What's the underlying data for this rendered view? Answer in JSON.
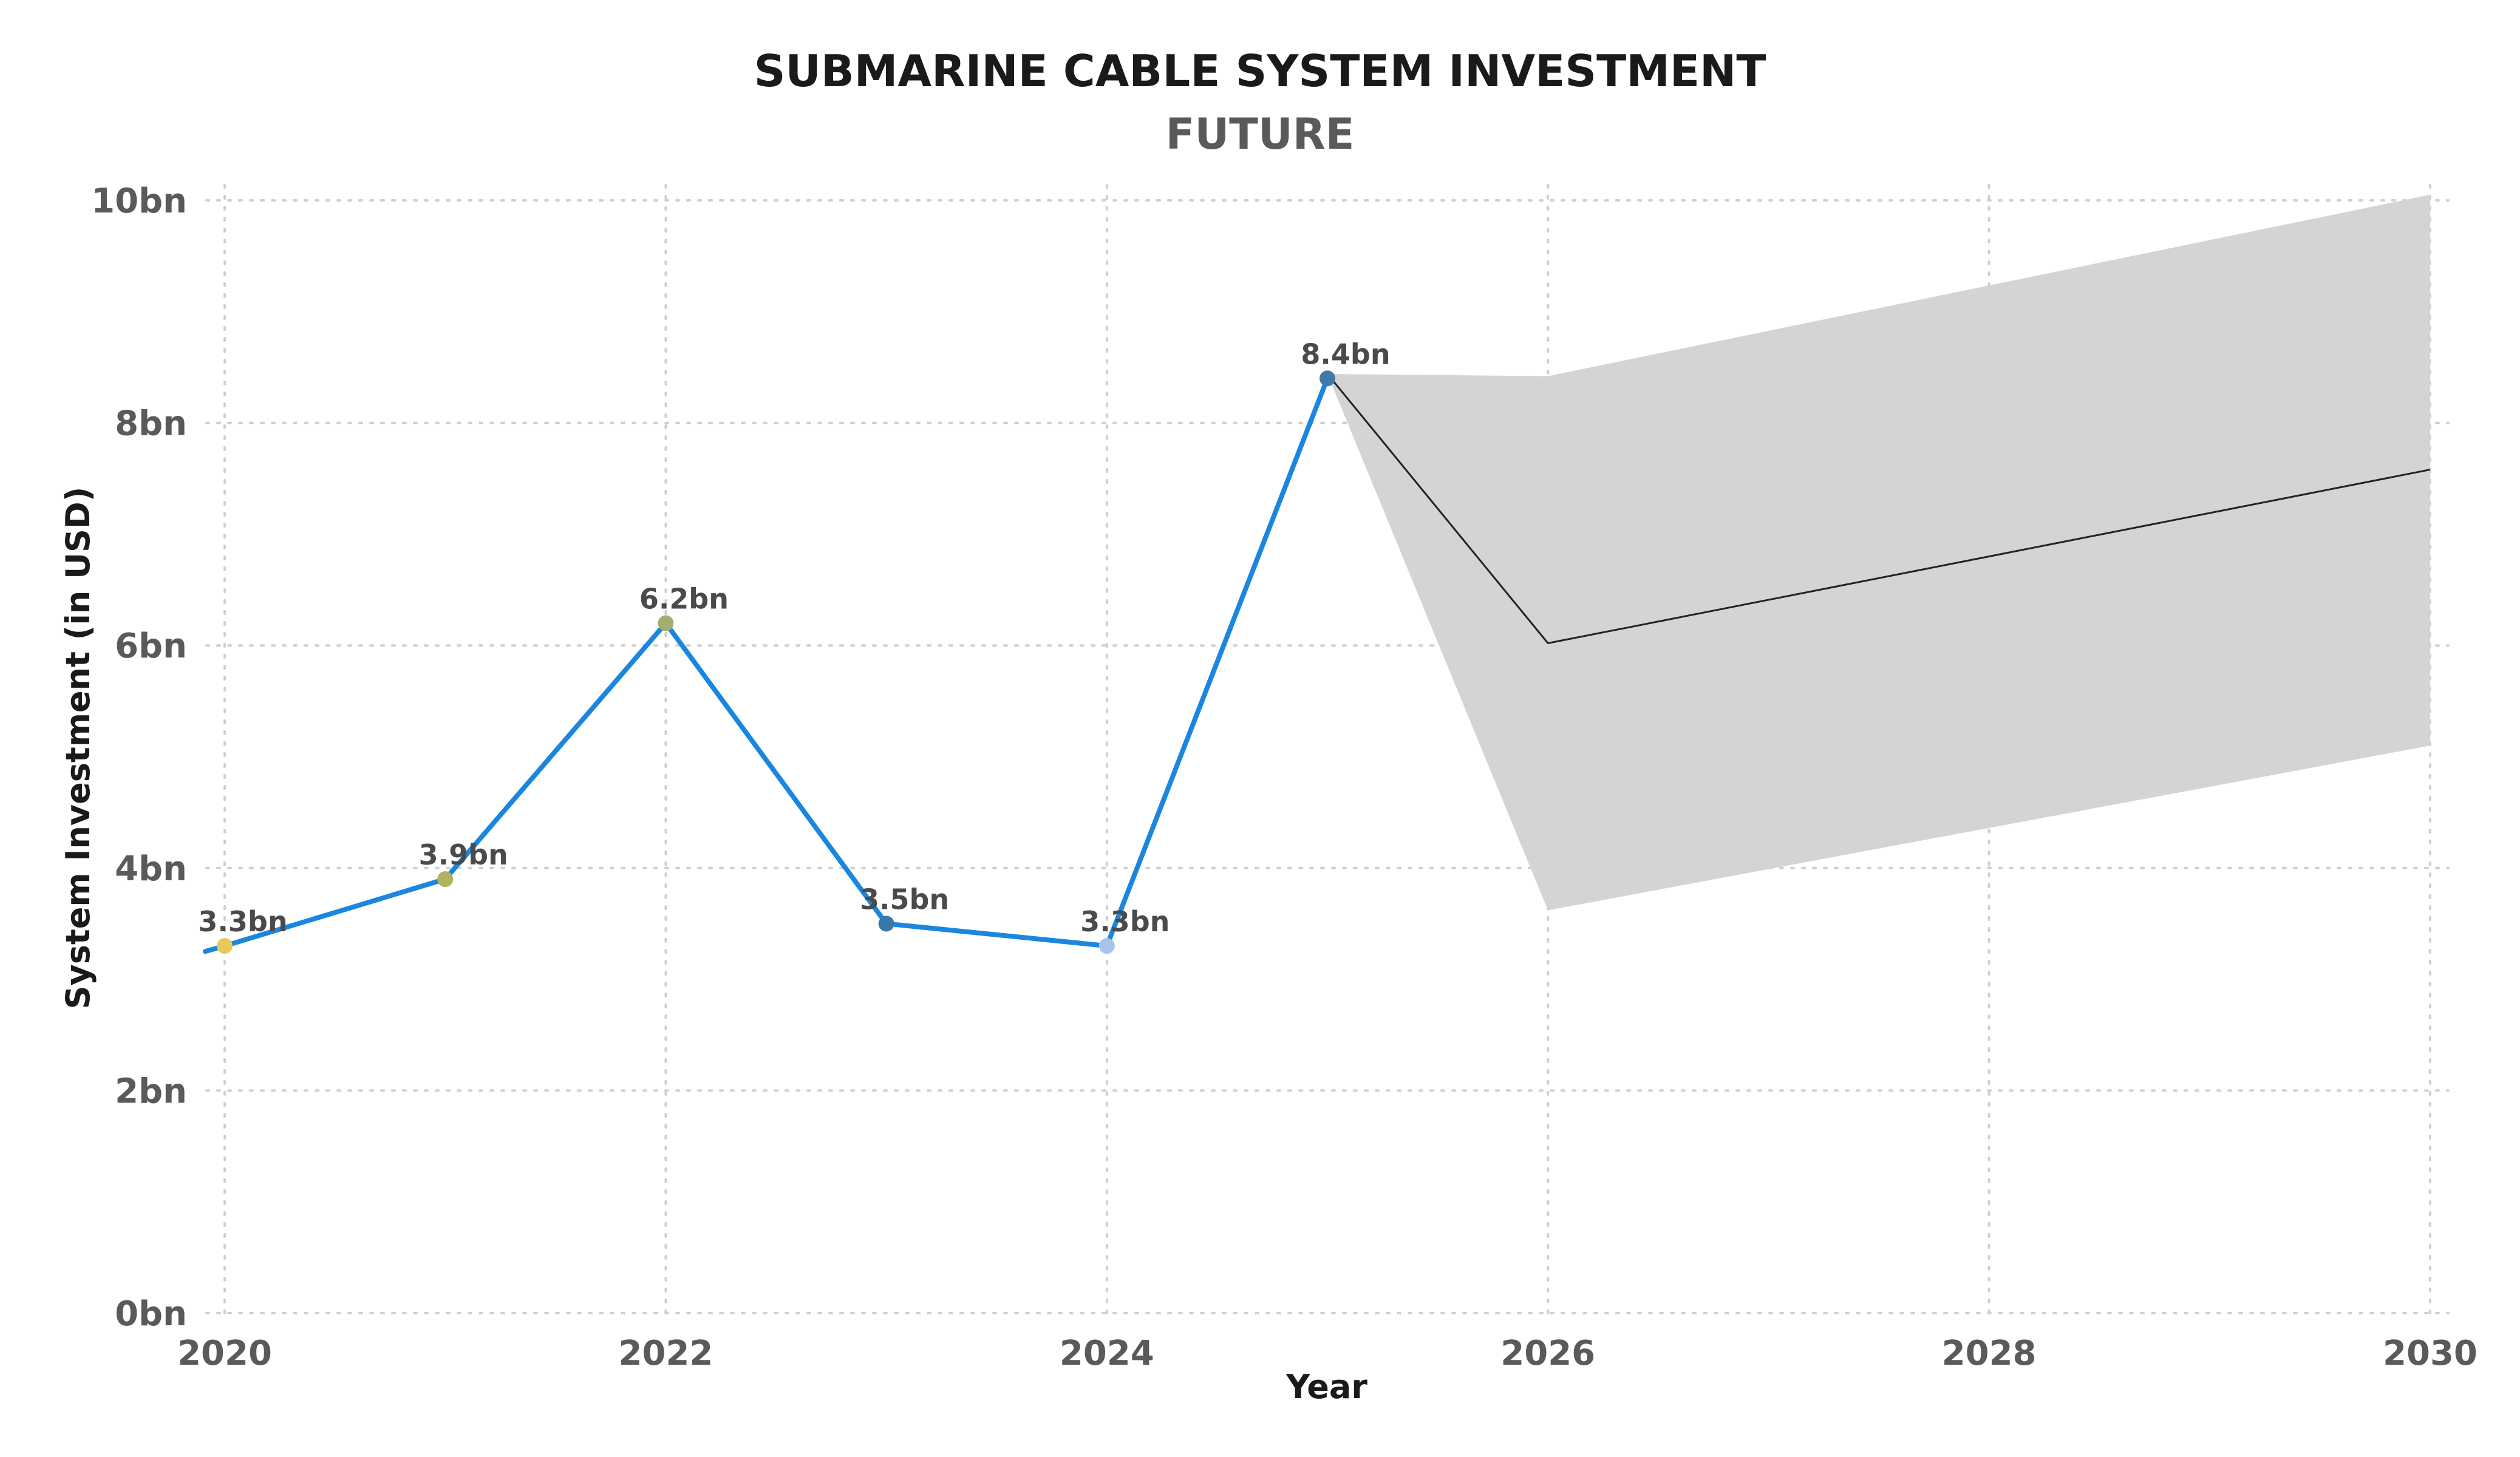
{
  "chart_data": {
    "type": "line",
    "title": "SUBMARINE CABLE SYSTEM INVESTMENT",
    "subtitle": "FUTURE",
    "xlabel": "Year",
    "ylabel": "System Investment (in USD)",
    "xlim": [
      2020,
      2030
    ],
    "ylim": [
      0,
      10
    ],
    "x_ticks": [
      2020,
      2022,
      2024,
      2026,
      2028,
      2030
    ],
    "x_tick_labels": [
      "2020",
      "2022",
      "2024",
      "2026",
      "2028",
      "2030"
    ],
    "y_ticks": [
      0,
      2,
      4,
      6,
      8,
      10
    ],
    "y_tick_labels": [
      "0bn",
      "2bn",
      "4bn",
      "6bn",
      "8bn",
      "10bn"
    ],
    "grid": true,
    "series": [
      {
        "x": [
          2020,
          2021,
          2022,
          2023,
          2024,
          2025
        ],
        "values": [
          3.3,
          3.9,
          6.2,
          3.5,
          3.3,
          8.4
        ],
        "labels": [
          "3.3bn",
          "3.9bn",
          "6.2bn",
          "3.5bn",
          "3.3bn",
          "8.4bn"
        ],
        "color": "#1a86e0",
        "point_colors": [
          "#e8c85a",
          "#b0b35c",
          "#a3ad70",
          "#3a78a8",
          "#a7c4ef",
          "#3e7bab"
        ],
        "start_value": 3.25
      }
    ],
    "forecast": {
      "x": [
        2025,
        2026,
        2030
      ],
      "values": [
        8.44,
        6.02,
        7.58
      ],
      "upper": [
        8.44,
        8.42,
        10.05
      ],
      "lower": [
        8.44,
        3.62,
        5.1
      ],
      "line_color": "#222222",
      "band_color": "#d4d4d4"
    }
  }
}
